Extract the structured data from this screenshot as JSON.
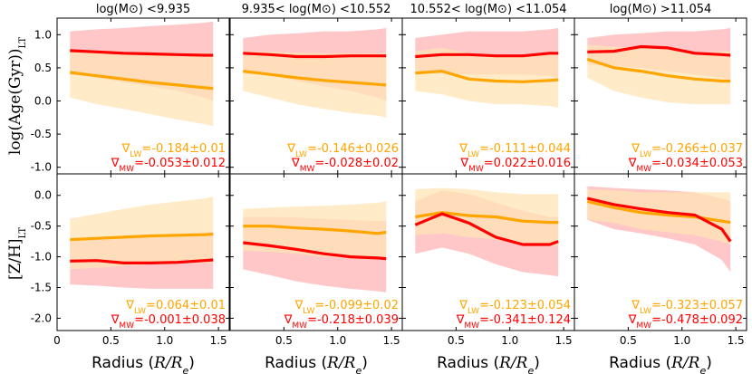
{
  "colors": {
    "lw": "#ffa500",
    "mw": "#ff0000",
    "lw_band": "#ffe4b5",
    "mw_band": "#ff9999",
    "axis": "#000000"
  },
  "xlabel_prefix": "Radius (",
  "xlabel_math": "R/R",
  "xlabel_sub": "e",
  "xlabel_suffix": ")",
  "row_labels": {
    "age": "log(Age(Gyr))",
    "age_sub": "LT",
    "zh": "[Z/H]",
    "zh_sub": "LT"
  },
  "grad_labels": {
    "lw_prefix": "∇",
    "lw_sub": "LW",
    "mw_prefix": "∇",
    "mw_sub": "MW"
  },
  "chart_data": [
    {
      "type": "line",
      "row": "age",
      "title": "log(M⊙) <9.935",
      "xlim": [
        0,
        1.6
      ],
      "ylim": [
        -1.1,
        1.25
      ],
      "xticks": [
        0,
        0.5,
        1.0,
        1.5
      ],
      "yticks": [
        -1.0,
        -0.5,
        0.0,
        0.5,
        1.0
      ],
      "x": [
        0.12,
        0.37,
        0.62,
        0.87,
        1.12,
        1.37,
        1.45
      ],
      "series": [
        {
          "name": "MW",
          "values": [
            0.76,
            0.74,
            0.72,
            0.71,
            0.7,
            0.69,
            0.69
          ],
          "lower": [
            0.4,
            0.35,
            0.28,
            0.22,
            0.15,
            0.05,
            0.0
          ],
          "upper": [
            1.05,
            1.08,
            1.1,
            1.13,
            1.15,
            1.18,
            1.2
          ]
        },
        {
          "name": "LW",
          "values": [
            0.43,
            0.38,
            0.33,
            0.28,
            0.24,
            0.2,
            0.19
          ],
          "lower": [
            0.05,
            -0.05,
            -0.12,
            -0.2,
            -0.28,
            -0.35,
            -0.38
          ],
          "upper": [
            0.75,
            0.73,
            0.72,
            0.7,
            0.72,
            0.72,
            0.72
          ]
        }
      ],
      "lw_grad": "-0.184±0.01",
      "mw_grad": "-0.053±0.012"
    },
    {
      "type": "line",
      "row": "age",
      "title": "9.935< log(M⊙) <10.552",
      "xlim": [
        0,
        1.6
      ],
      "ylim": [
        -1.1,
        1.25
      ],
      "x": [
        0.12,
        0.37,
        0.62,
        0.87,
        1.12,
        1.37,
        1.45
      ],
      "series": [
        {
          "name": "MW",
          "values": [
            0.72,
            0.7,
            0.67,
            0.67,
            0.68,
            0.68,
            0.68
          ],
          "lower": [
            0.45,
            0.4,
            0.3,
            0.22,
            0.15,
            0.05,
            0.0
          ],
          "upper": [
            0.95,
            1.0,
            1.02,
            1.05,
            1.05,
            1.08,
            1.1
          ]
        },
        {
          "name": "LW",
          "values": [
            0.45,
            0.4,
            0.35,
            0.31,
            0.28,
            0.25,
            0.24
          ],
          "lower": [
            0.15,
            0.05,
            -0.05,
            -0.12,
            -0.18,
            -0.22,
            -0.25
          ],
          "upper": [
            0.75,
            0.74,
            0.73,
            0.72,
            0.72,
            0.72,
            0.72
          ]
        }
      ],
      "lw_grad": "-0.146±0.026",
      "mw_grad": "-0.028±0.02"
    },
    {
      "type": "line",
      "row": "age",
      "title": "10.552< log(M⊙) <11.054",
      "xlim": [
        0,
        1.6
      ],
      "ylim": [
        -1.1,
        1.25
      ],
      "x": [
        0.12,
        0.37,
        0.62,
        0.87,
        1.12,
        1.37,
        1.45
      ],
      "series": [
        {
          "name": "MW",
          "values": [
            0.67,
            0.7,
            0.7,
            0.68,
            0.68,
            0.72,
            0.72
          ],
          "lower": [
            0.45,
            0.42,
            0.4,
            0.4,
            0.4,
            0.38,
            0.35
          ],
          "upper": [
            0.95,
            1.0,
            1.05,
            1.05,
            1.05,
            1.08,
            1.1
          ]
        },
        {
          "name": "LW",
          "values": [
            0.42,
            0.45,
            0.33,
            0.3,
            0.29,
            0.31,
            0.32
          ],
          "lower": [
            0.15,
            0.1,
            0.0,
            -0.05,
            -0.05,
            -0.08,
            -0.1
          ],
          "upper": [
            0.75,
            0.8,
            0.72,
            0.7,
            0.7,
            0.7,
            0.7
          ]
        }
      ],
      "lw_grad": "-0.111±0.044",
      "mw_grad": "0.022±0.016"
    },
    {
      "type": "line",
      "row": "age",
      "title": "log(M⊙) >11.054",
      "xlim": [
        0,
        1.6
      ],
      "ylim": [
        -1.1,
        1.25
      ],
      "x": [
        0.12,
        0.37,
        0.62,
        0.87,
        1.12,
        1.37,
        1.45
      ],
      "series": [
        {
          "name": "MW",
          "values": [
            0.74,
            0.75,
            0.82,
            0.8,
            0.72,
            0.7,
            0.69
          ],
          "lower": [
            0.55,
            0.52,
            0.5,
            0.45,
            0.4,
            0.35,
            0.32
          ],
          "upper": [
            0.95,
            1.0,
            1.02,
            1.05,
            1.05,
            1.08,
            1.1
          ]
        },
        {
          "name": "LW",
          "values": [
            0.63,
            0.5,
            0.45,
            0.38,
            0.33,
            0.3,
            0.3
          ],
          "lower": [
            0.35,
            0.15,
            0.05,
            -0.02,
            -0.05,
            -0.05,
            -0.05
          ],
          "upper": [
            0.85,
            0.82,
            0.8,
            0.78,
            0.72,
            0.75,
            0.75
          ]
        }
      ],
      "lw_grad": "-0.266±0.037",
      "mw_grad": "-0.034±0.053"
    },
    {
      "type": "line",
      "row": "zh",
      "title": "",
      "xlim": [
        0,
        1.6
      ],
      "ylim": [
        -2.2,
        0.35
      ],
      "xticks": [
        0,
        0.5,
        1.0,
        1.5
      ],
      "xticklabels": [
        "0",
        "0.5",
        "1.0",
        "1.5"
      ],
      "yticks": [
        -2.0,
        -1.5,
        -1.0,
        -0.5,
        0.0
      ],
      "x": [
        0.12,
        0.37,
        0.62,
        0.87,
        1.12,
        1.37,
        1.45
      ],
      "series": [
        {
          "name": "MW",
          "values": [
            -1.07,
            -1.06,
            -1.1,
            -1.1,
            -1.09,
            -1.06,
            -1.05
          ],
          "lower": [
            -1.45,
            -1.47,
            -1.5,
            -1.52,
            -1.52,
            -1.52,
            -1.52
          ],
          "upper": [
            -0.72,
            -0.7,
            -0.68,
            -0.65,
            -0.62,
            -0.6,
            -0.6
          ]
        },
        {
          "name": "LW",
          "values": [
            -0.72,
            -0.7,
            -0.68,
            -0.66,
            -0.65,
            -0.64,
            -0.63
          ],
          "lower": [
            -1.2,
            -1.18,
            -1.15,
            -1.12,
            -1.1,
            -1.1,
            -1.1
          ],
          "upper": [
            -0.38,
            -0.3,
            -0.22,
            -0.15,
            -0.1,
            -0.05,
            -0.02
          ]
        }
      ],
      "lw_grad": "0.064±0.01",
      "mw_grad": "-0.001±0.038"
    },
    {
      "type": "line",
      "row": "zh",
      "title": "",
      "xlim": [
        0,
        1.6
      ],
      "ylim": [
        -2.2,
        0.35
      ],
      "xticklabels": [
        "",
        "0.5",
        "1.0",
        "1.5"
      ],
      "x": [
        0.12,
        0.37,
        0.62,
        0.87,
        1.12,
        1.37,
        1.45
      ],
      "series": [
        {
          "name": "MW",
          "values": [
            -0.77,
            -0.82,
            -0.88,
            -0.95,
            -1.0,
            -1.02,
            -1.03
          ],
          "lower": [
            -1.2,
            -1.3,
            -1.4,
            -1.47,
            -1.52,
            -1.56,
            -1.58
          ],
          "upper": [
            -0.35,
            -0.35,
            -0.36,
            -0.38,
            -0.4,
            -0.42,
            -0.42
          ]
        },
        {
          "name": "LW",
          "values": [
            -0.5,
            -0.5,
            -0.53,
            -0.55,
            -0.58,
            -0.62,
            -0.6
          ],
          "lower": [
            -0.9,
            -0.92,
            -0.95,
            -1.0,
            -1.02,
            -1.05,
            -1.05
          ],
          "upper": [
            -0.22,
            -0.2,
            -0.18,
            -0.17,
            -0.15,
            -0.12,
            -0.1
          ]
        }
      ],
      "lw_grad": "-0.099±0.02",
      "mw_grad": "-0.218±0.039"
    },
    {
      "type": "line",
      "row": "zh",
      "title": "",
      "xlim": [
        0,
        1.6
      ],
      "ylim": [
        -2.2,
        0.35
      ],
      "xticklabels": [
        "",
        "0.5",
        "1.0",
        "1.5"
      ],
      "x": [
        0.12,
        0.37,
        0.62,
        0.87,
        1.12,
        1.37,
        1.45
      ],
      "series": [
        {
          "name": "MW",
          "values": [
            -0.48,
            -0.3,
            -0.45,
            -0.68,
            -0.8,
            -0.8,
            -0.75
          ],
          "lower": [
            -0.95,
            -0.85,
            -0.95,
            -1.12,
            -1.25,
            -1.3,
            -1.32
          ],
          "upper": [
            -0.1,
            0.08,
            0.02,
            -0.12,
            -0.25,
            -0.35,
            -0.35
          ]
        },
        {
          "name": "LW",
          "values": [
            -0.35,
            -0.28,
            -0.33,
            -0.35,
            -0.42,
            -0.44,
            -0.44
          ],
          "lower": [
            -0.65,
            -0.62,
            -0.68,
            -0.72,
            -0.78,
            -0.82,
            -0.82
          ],
          "upper": [
            0.1,
            0.12,
            0.1,
            0.05,
            0.02,
            0.02,
            0.02
          ]
        }
      ],
      "lw_grad": "-0.123±0.054",
      "mw_grad": "-0.341±0.124"
    },
    {
      "type": "line",
      "row": "zh",
      "title": "",
      "xlim": [
        0,
        1.6
      ],
      "ylim": [
        -2.2,
        0.35
      ],
      "xticklabels": [
        "",
        "0.5",
        "1.0",
        "1.5"
      ],
      "x": [
        0.12,
        0.37,
        0.62,
        0.87,
        1.12,
        1.37,
        1.45
      ],
      "series": [
        {
          "name": "MW",
          "values": [
            -0.05,
            -0.15,
            -0.22,
            -0.28,
            -0.32,
            -0.55,
            -0.75
          ],
          "lower": [
            -0.4,
            -0.55,
            -0.62,
            -0.7,
            -0.8,
            -1.05,
            -1.25
          ],
          "upper": [
            0.15,
            0.12,
            0.1,
            0.08,
            0.05,
            -0.05,
            -0.1
          ]
        },
        {
          "name": "LW",
          "values": [
            -0.1,
            -0.2,
            -0.28,
            -0.32,
            -0.35,
            -0.42,
            -0.44
          ],
          "lower": [
            -0.4,
            -0.45,
            -0.55,
            -0.6,
            -0.65,
            -0.75,
            -0.8
          ],
          "upper": [
            0.1,
            0.08,
            0.05,
            0.05,
            0.05,
            0.05,
            0.05
          ]
        }
      ],
      "lw_grad": "-0.323±0.057",
      "mw_grad": "-0.478±0.092"
    }
  ]
}
